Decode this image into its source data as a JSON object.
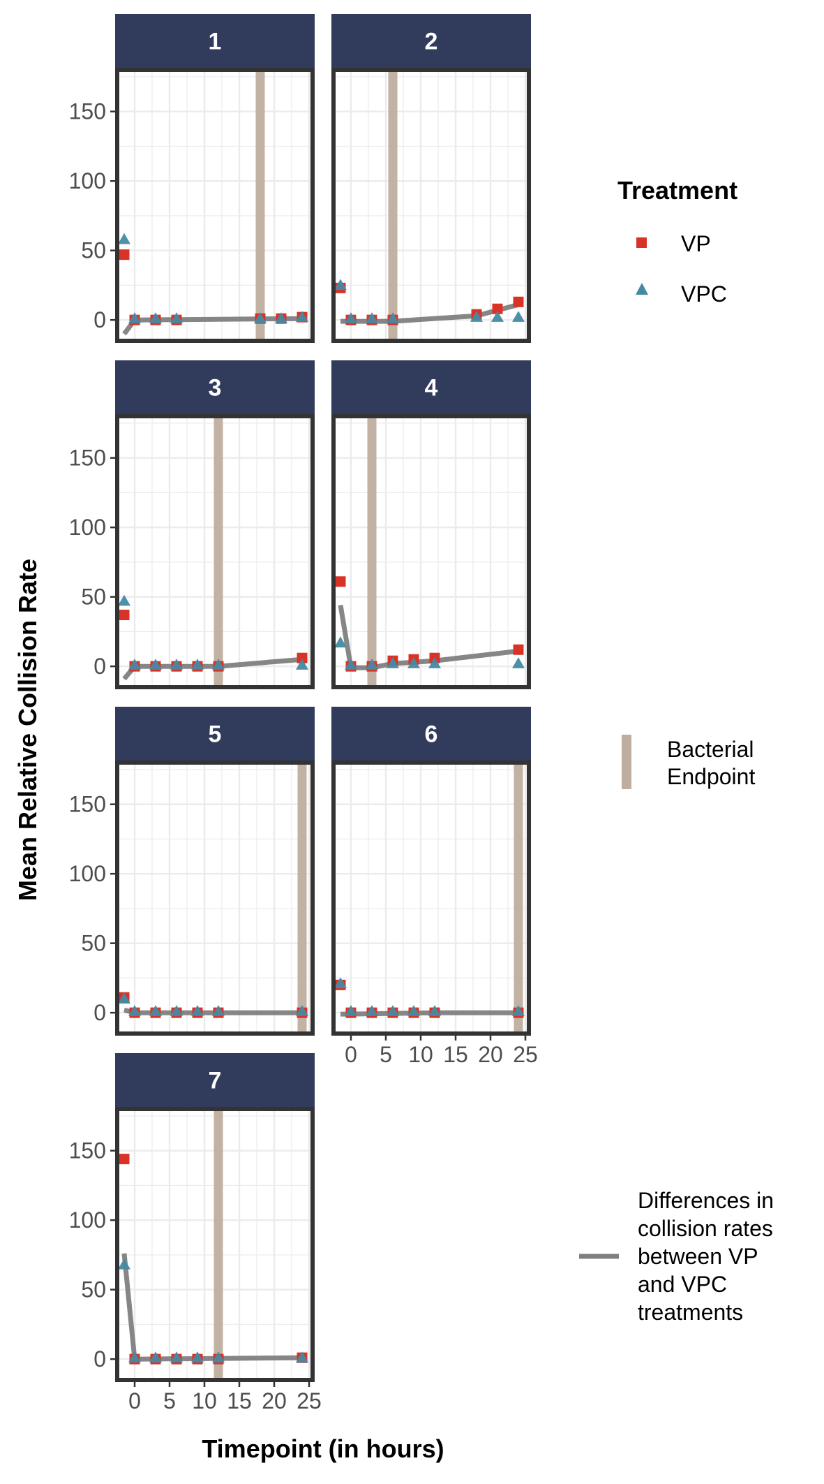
{
  "chart_data": {
    "type": "scatter",
    "xlabel": "Timepoint (in hours)",
    "ylabel": "Mean Relative Collision Rate",
    "xlim": [
      -2.5,
      25.5
    ],
    "ylim": [
      -15,
      180
    ],
    "x_ticks": [
      0,
      5,
      10,
      15,
      20,
      25
    ],
    "y_ticks": [
      0,
      50,
      100,
      150
    ],
    "grid": true,
    "colors": {
      "VP": "#d93328",
      "VPC": "#458aa3",
      "endpoint": "#bfae9f",
      "difference": "#7f7f7f",
      "strip": "#313b5c",
      "border": "#333333",
      "grid": "#ebebeb"
    },
    "legend": {
      "treatment_title": "Treatment",
      "treatment_items": [
        {
          "label": "VP",
          "shape": "square"
        },
        {
          "label": "VPC",
          "shape": "triangle"
        }
      ],
      "endpoint_label": [
        "Bacterial",
        "Endpoint"
      ],
      "difference_label": [
        "Differences in",
        "collision rates",
        "between VP",
        "and VPC",
        "treatments"
      ],
      "placement": "right"
    },
    "panels": [
      {
        "label": "1",
        "endpoint": 18,
        "VP": [
          {
            "x": -1.5,
            "y": 47
          },
          {
            "x": 0,
            "y": 0
          },
          {
            "x": 3,
            "y": 0
          },
          {
            "x": 6,
            "y": 0
          },
          {
            "x": 18,
            "y": 1
          },
          {
            "x": 21,
            "y": 1
          },
          {
            "x": 24,
            "y": 2
          }
        ],
        "VPC": [
          {
            "x": -1.5,
            "y": 58
          },
          {
            "x": 0,
            "y": 1
          },
          {
            "x": 3,
            "y": 1
          },
          {
            "x": 6,
            "y": 1
          },
          {
            "x": 18,
            "y": 1
          },
          {
            "x": 21,
            "y": 1
          },
          {
            "x": 24,
            "y": 2
          }
        ],
        "diff": [
          {
            "x": -1.5,
            "y": -10
          },
          {
            "x": 0,
            "y": 0
          },
          {
            "x": 24,
            "y": 1
          }
        ]
      },
      {
        "label": "2",
        "endpoint": 6,
        "VP": [
          {
            "x": -1.5,
            "y": 23
          },
          {
            "x": 0,
            "y": 0
          },
          {
            "x": 3,
            "y": 0
          },
          {
            "x": 6,
            "y": 0
          },
          {
            "x": 18,
            "y": 4
          },
          {
            "x": 21,
            "y": 8
          },
          {
            "x": 24,
            "y": 13
          }
        ],
        "VPC": [
          {
            "x": -1.5,
            "y": 25
          },
          {
            "x": 0,
            "y": 1
          },
          {
            "x": 3,
            "y": 1
          },
          {
            "x": 6,
            "y": 1
          },
          {
            "x": 18,
            "y": 2
          },
          {
            "x": 21,
            "y": 2
          },
          {
            "x": 24,
            "y": 2
          }
        ],
        "diff": [
          {
            "x": -1.5,
            "y": -1
          },
          {
            "x": 6,
            "y": -1
          },
          {
            "x": 18,
            "y": 3
          },
          {
            "x": 24,
            "y": 11
          }
        ]
      },
      {
        "label": "3",
        "endpoint": 12,
        "VP": [
          {
            "x": -1.5,
            "y": 37
          },
          {
            "x": 0,
            "y": 0
          },
          {
            "x": 3,
            "y": 0
          },
          {
            "x": 6,
            "y": 0
          },
          {
            "x": 9,
            "y": 0
          },
          {
            "x": 12,
            "y": 0
          },
          {
            "x": 24,
            "y": 6
          }
        ],
        "VPC": [
          {
            "x": -1.5,
            "y": 47
          },
          {
            "x": 0,
            "y": 1
          },
          {
            "x": 3,
            "y": 1
          },
          {
            "x": 6,
            "y": 1
          },
          {
            "x": 9,
            "y": 1
          },
          {
            "x": 12,
            "y": 1
          },
          {
            "x": 24,
            "y": 1
          }
        ],
        "diff": [
          {
            "x": -1.5,
            "y": -9
          },
          {
            "x": 0,
            "y": 0
          },
          {
            "x": 12,
            "y": 0
          },
          {
            "x": 24,
            "y": 5
          }
        ]
      },
      {
        "label": "4",
        "endpoint": 3,
        "VP": [
          {
            "x": -1.5,
            "y": 61
          },
          {
            "x": 0,
            "y": 0
          },
          {
            "x": 3,
            "y": 0
          },
          {
            "x": 6,
            "y": 4
          },
          {
            "x": 9,
            "y": 5
          },
          {
            "x": 12,
            "y": 6
          },
          {
            "x": 24,
            "y": 12
          }
        ],
        "VPC": [
          {
            "x": -1.5,
            "y": 17
          },
          {
            "x": 0,
            "y": 1
          },
          {
            "x": 3,
            "y": 1
          },
          {
            "x": 6,
            "y": 2
          },
          {
            "x": 9,
            "y": 2
          },
          {
            "x": 12,
            "y": 2
          },
          {
            "x": 24,
            "y": 2
          }
        ],
        "diff": [
          {
            "x": -1.5,
            "y": 44
          },
          {
            "x": 0,
            "y": -1
          },
          {
            "x": 3,
            "y": -1
          },
          {
            "x": 6,
            "y": 2
          },
          {
            "x": 12,
            "y": 4
          },
          {
            "x": 24,
            "y": 11
          }
        ]
      },
      {
        "label": "5",
        "endpoint": 24,
        "VP": [
          {
            "x": -1.5,
            "y": 11
          },
          {
            "x": 0,
            "y": 0
          },
          {
            "x": 3,
            "y": 0
          },
          {
            "x": 6,
            "y": 0
          },
          {
            "x": 9,
            "y": 0
          },
          {
            "x": 12,
            "y": 0
          },
          {
            "x": 24,
            "y": 0
          }
        ],
        "VPC": [
          {
            "x": -1.5,
            "y": 10
          },
          {
            "x": 0,
            "y": 1
          },
          {
            "x": 3,
            "y": 1
          },
          {
            "x": 6,
            "y": 1
          },
          {
            "x": 9,
            "y": 1
          },
          {
            "x": 12,
            "y": 1
          },
          {
            "x": 24,
            "y": 1
          }
        ],
        "diff": [
          {
            "x": -1.5,
            "y": 2
          },
          {
            "x": 0,
            "y": 0
          },
          {
            "x": 24,
            "y": 0
          }
        ]
      },
      {
        "label": "6",
        "endpoint": 24,
        "VP": [
          {
            "x": -1.5,
            "y": 20
          },
          {
            "x": 0,
            "y": 0
          },
          {
            "x": 3,
            "y": 0
          },
          {
            "x": 6,
            "y": 0
          },
          {
            "x": 9,
            "y": 0
          },
          {
            "x": 12,
            "y": 0
          },
          {
            "x": 24,
            "y": 0
          }
        ],
        "VPC": [
          {
            "x": -1.5,
            "y": 21
          },
          {
            "x": 0,
            "y": 1
          },
          {
            "x": 3,
            "y": 1
          },
          {
            "x": 6,
            "y": 1
          },
          {
            "x": 9,
            "y": 1
          },
          {
            "x": 12,
            "y": 1
          },
          {
            "x": 24,
            "y": 1
          }
        ],
        "diff": [
          {
            "x": -1.5,
            "y": -1
          },
          {
            "x": 0,
            "y": -1
          },
          {
            "x": 12,
            "y": 0
          },
          {
            "x": 24,
            "y": 0
          }
        ]
      },
      {
        "label": "7",
        "endpoint": 12,
        "VP": [
          {
            "x": -1.5,
            "y": 144
          },
          {
            "x": 0,
            "y": 0
          },
          {
            "x": 3,
            "y": 0
          },
          {
            "x": 6,
            "y": 0
          },
          {
            "x": 9,
            "y": 0
          },
          {
            "x": 12,
            "y": 0
          },
          {
            "x": 24,
            "y": 1
          }
        ],
        "VPC": [
          {
            "x": -1.5,
            "y": 68
          },
          {
            "x": 0,
            "y": 1
          },
          {
            "x": 3,
            "y": 1
          },
          {
            "x": 6,
            "y": 1
          },
          {
            "x": 9,
            "y": 1
          },
          {
            "x": 12,
            "y": 1
          },
          {
            "x": 24,
            "y": 1
          }
        ],
        "diff": [
          {
            "x": -1.5,
            "y": 76
          },
          {
            "x": 0,
            "y": 0
          },
          {
            "x": 24,
            "y": 1
          }
        ]
      }
    ]
  }
}
